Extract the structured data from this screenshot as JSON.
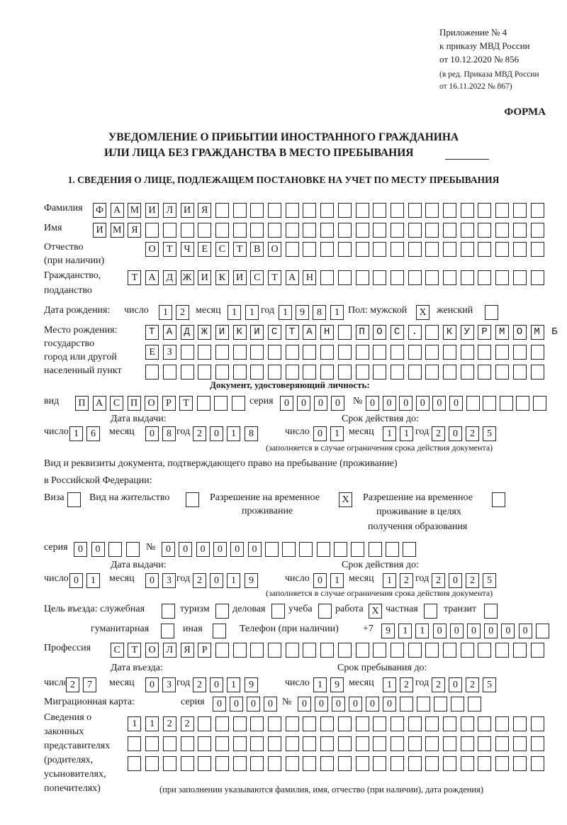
{
  "header": {
    "appendix": "Приложение № 4",
    "order": "к приказу МВД России",
    "order_date": "от 10.12.2020 № 856",
    "revision1": "(в ред. Приказа МВД России",
    "revision2": "от 16.11.2022 № 867)",
    "form_label": "ФОРМА",
    "title1": "УВЕДОМЛЕНИЕ О ПРИБЫТИИ ИНОСТРАННОГО ГРАЖДАНИНА",
    "title2": "ИЛИ ЛИЦА БЕЗ ГРАЖДАНСТВА В МЕСТО ПРЕБЫВАНИЯ",
    "section1": "1. СВЕДЕНИЯ О ЛИЦЕ, ПОДЛЕЖАЩЕМ ПОСТАНОВКЕ НА УЧЕТ ПО МЕСТУ ПРЕБЫВАНИЯ"
  },
  "labels": {
    "surname": "Фамилия",
    "name": "Имя",
    "patronymic": "Отчество",
    "patronymic_note": "(при наличии)",
    "citizenship": "Гражданство,",
    "citizenship2": "подданство",
    "dob": "Дата рождения:",
    "day": "число",
    "month": "месяц",
    "year": "год",
    "sex": "Пол: мужской",
    "female": "женский",
    "birthplace": "Место рождения:",
    "birthplace2": "государство",
    "birthplace3": "город или другой",
    "birthplace4": "населенный пункт",
    "id_doc": "Документ, удостоверяющий личность:",
    "kind": "вид",
    "series": "серия",
    "number": "№",
    "issue_date": "Дата выдачи:",
    "valid_until": "Срок действия до:",
    "validity_note": "(заполняется в случае ограничения срока действия документа)",
    "right_doc1": "Вид и реквизиты документа, подтверждающего право на пребывание (проживание)",
    "right_doc2": "в Российской Федерации:",
    "visa": "Виза",
    "residence": "Вид на жительство",
    "trp1": "Разрешение на временное",
    "trp2": "проживание",
    "trp_edu1": "Разрешение на временное",
    "trp_edu2": "проживание в целях",
    "trp_edu3": "получения образования",
    "purpose": "Цель въезда: служебная",
    "tourism": "туризм",
    "business": "деловая",
    "study": "учеба",
    "work": "работа",
    "private": "частная",
    "transit": "транзит",
    "humanitarian": "гуманитарная",
    "other": "иная",
    "phone": "Телефон (при наличии)",
    "phone_prefix": "+7",
    "profession": "Профессия",
    "entry_date": "Дата въезда:",
    "stay_until": "Срок пребывания до:",
    "migration_card": "Миграционная карта:",
    "reps1": "Сведения о",
    "reps2": "законных",
    "reps3": "представителях",
    "reps4": "(родителях,",
    "reps5": "усыновителях,",
    "reps6": "попечителях)",
    "reps_note": "(при заполнении указываются фамилия, имя, отчество (при наличии), дата рождения)"
  },
  "values": {
    "surname": "ФАМИЛИЯ",
    "name": "ИМЯ",
    "patronymic": "ОТЧЕСТВО",
    "citizenship": "ТАДЖИКИСТАН",
    "dob_day": "12",
    "dob_month": "11",
    "dob_year": "1981",
    "sex_male": "X",
    "sex_female": "",
    "birthplace1": "ТАДЖИКИСТАН ПОС. КУРМОМБ",
    "birthplace2": "ЕЗ",
    "birthplace3": "",
    "id_kind": "ПАСПОРТ",
    "id_series": "0000",
    "id_number": "000000",
    "id_issue_day": "16",
    "id_issue_month": "08",
    "id_issue_year": "2018",
    "id_valid_day": "01",
    "id_valid_month": "11",
    "id_valid_year": "2025",
    "visa": "",
    "residence": "",
    "trp": "X",
    "trp_edu": "",
    "rd_series": "00",
    "rd_number": "000000",
    "rd_issue_day": "01",
    "rd_issue_month": "03",
    "rd_issue_year": "2019",
    "rd_valid_day": "01",
    "rd_valid_month": "12",
    "rd_valid_year": "2025",
    "purpose_official": "",
    "purpose_tourism": "",
    "purpose_business": "",
    "purpose_study": "",
    "purpose_work": "X",
    "purpose_private": "",
    "purpose_transit": "",
    "purpose_humanitarian": "",
    "purpose_other": "",
    "phone": "911000000",
    "profession": "СТОЛЯР",
    "entry_day": "27",
    "entry_month": "03",
    "entry_year": "2019",
    "stay_day": "19",
    "stay_month": "12",
    "stay_year": "2025",
    "mc_series": "0000",
    "mc_number": "000000",
    "reps1": "1122",
    "reps2": "",
    "reps3": ""
  }
}
